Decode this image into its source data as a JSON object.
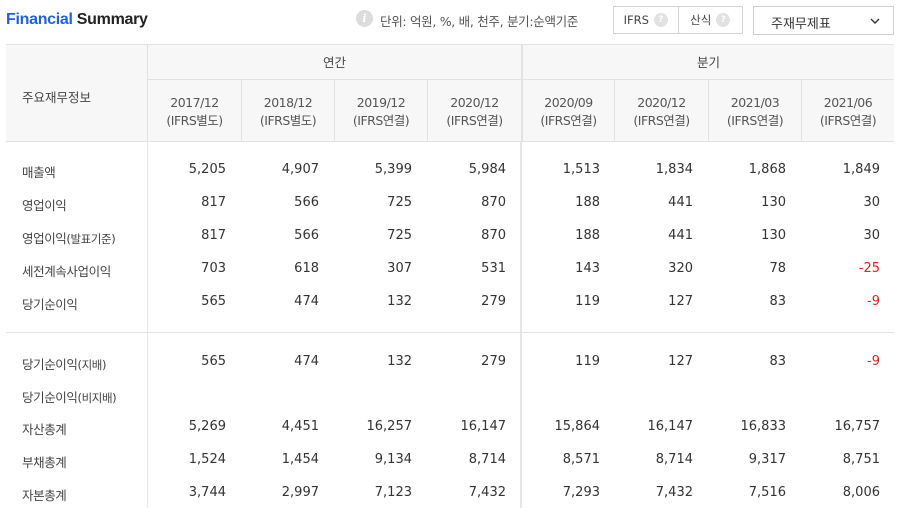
{
  "header": {
    "title_part1": "Financial",
    "title_part2": " Summary",
    "info_icon": "info-icon",
    "unit_text": "단위: 억원, %, 배, 천주, 분기:순액기준",
    "toggle": [
      {
        "label": "IFRS",
        "help": "?"
      },
      {
        "label": "산식",
        "help": "?"
      }
    ],
    "select_value": "주재무제표"
  },
  "table": {
    "label_header": "주요재무정보",
    "group_annual": "연간",
    "group_quarter": "분기",
    "periods": [
      {
        "date": "2017/12",
        "basis": "(IFRS별도)"
      },
      {
        "date": "2018/12",
        "basis": "(IFRS별도)"
      },
      {
        "date": "2019/12",
        "basis": "(IFRS연결)"
      },
      {
        "date": "2020/12",
        "basis": "(IFRS연결)"
      },
      {
        "date": "2020/09",
        "basis": "(IFRS연결)"
      },
      {
        "date": "2020/12",
        "basis": "(IFRS연결)"
      },
      {
        "date": "2021/03",
        "basis": "(IFRS연결)"
      },
      {
        "date": "2021/06",
        "basis": "(IFRS연결)"
      }
    ],
    "rows": [
      {
        "label": "매출액",
        "sub": "",
        "values": [
          "5,205",
          "4,907",
          "5,399",
          "5,984",
          "1,513",
          "1,834",
          "1,868",
          "1,849"
        ]
      },
      {
        "label": "영업이익",
        "sub": "",
        "values": [
          "817",
          "566",
          "725",
          "870",
          "188",
          "441",
          "130",
          "30"
        ]
      },
      {
        "label": "영업이익",
        "sub": "(발표기준)",
        "values": [
          "817",
          "566",
          "725",
          "870",
          "188",
          "441",
          "130",
          "30"
        ]
      },
      {
        "label": "세전계속사업이익",
        "sub": "",
        "values": [
          "703",
          "618",
          "307",
          "531",
          "143",
          "320",
          "78",
          "-25"
        ]
      },
      {
        "label": "당기순이익",
        "sub": "",
        "values": [
          "565",
          "474",
          "132",
          "279",
          "119",
          "127",
          "83",
          "-9"
        ]
      },
      {
        "label": "당기순이익",
        "sub": "(지배)",
        "values": [
          "565",
          "474",
          "132",
          "279",
          "119",
          "127",
          "83",
          "-9"
        ]
      },
      {
        "label": "당기순이익",
        "sub": "(비지배)",
        "values": [
          "",
          "",
          "",
          "",
          "",
          "",
          "",
          ""
        ]
      },
      {
        "label": "자산총계",
        "sub": "",
        "values": [
          "5,269",
          "4,451",
          "16,257",
          "16,147",
          "15,864",
          "16,147",
          "16,833",
          "16,757"
        ]
      },
      {
        "label": "부채총계",
        "sub": "",
        "values": [
          "1,524",
          "1,454",
          "9,134",
          "8,714",
          "8,571",
          "8,714",
          "9,317",
          "8,751"
        ]
      },
      {
        "label": "자본총계",
        "sub": "",
        "values": [
          "3,744",
          "2,997",
          "7,123",
          "7,432",
          "7,293",
          "7,432",
          "7,516",
          "8,006"
        ]
      }
    ],
    "negative_color": "#e02020",
    "accent_color": "#1d62d8"
  }
}
